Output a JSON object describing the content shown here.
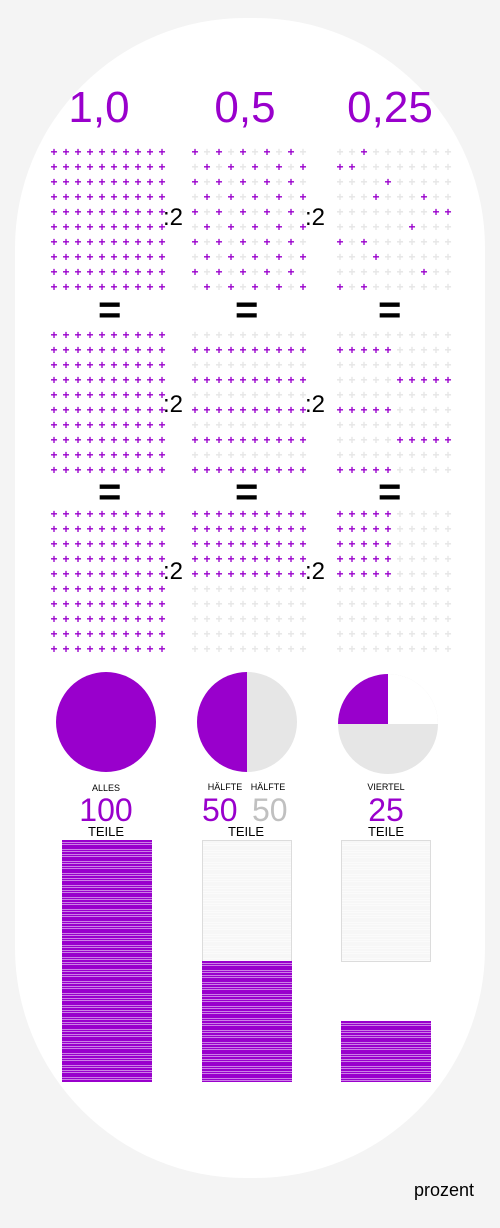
{
  "decimals": [
    "1,0",
    "0,5",
    "0,25"
  ],
  "division_label": ":2",
  "equals_sign": "=",
  "labels": {
    "alles": "ALLES",
    "haelfte": "HÄLFTE",
    "viertel": "VIERTEL"
  },
  "numbers": {
    "all": "100",
    "half": "50",
    "half_rest": "50",
    "quarter": "25"
  },
  "unit": "TEILE",
  "footer": "prozent",
  "colors": {
    "accent": "#9900cc",
    "light": "#e6e6e6",
    "grey_text": "#c0c0c0"
  },
  "shares": {
    "all": 1.0,
    "half": 0.5,
    "quarter": 0.25
  }
}
